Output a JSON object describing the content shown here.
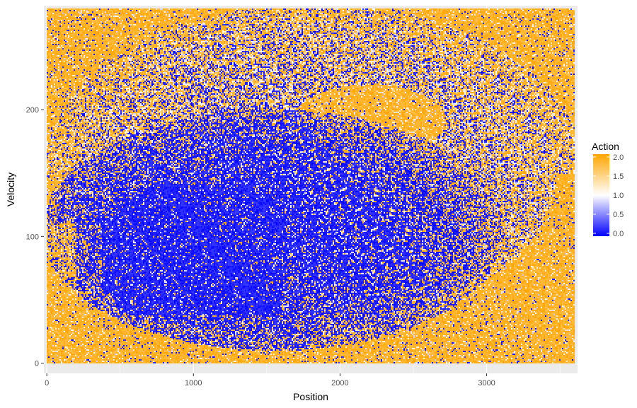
{
  "chart_data": {
    "type": "heatmap",
    "title": "",
    "xlabel": "Position",
    "ylabel": "Velocity",
    "xlim": [
      -20,
      3620
    ],
    "ylim": [
      -8,
      282
    ],
    "data_extent": {
      "x": [
        0,
        3600
      ],
      "y": [
        0,
        280
      ]
    },
    "x_ticks": [
      {
        "value": 0,
        "label": "0"
      },
      {
        "value": 1000,
        "label": "1000"
      },
      {
        "value": 2000,
        "label": "2000"
      },
      {
        "value": 3000,
        "label": "3000"
      }
    ],
    "y_ticks": [
      {
        "value": 0,
        "label": "0"
      },
      {
        "value": 100,
        "label": "100"
      },
      {
        "value": 200,
        "label": "200"
      }
    ],
    "grid": true,
    "panel_background": "#EBEBEB",
    "grid_color": "#FFFFFF",
    "legend": {
      "title": "Action",
      "placement": "right",
      "range": [
        0,
        2
      ],
      "ticks": [
        {
          "value": 2.0,
          "label": "2.0"
        },
        {
          "value": 1.5,
          "label": "1.5"
        },
        {
          "value": 1.0,
          "label": "1.0"
        },
        {
          "value": 0.5,
          "label": "0.5"
        },
        {
          "value": 0.0,
          "label": "0.0"
        }
      ],
      "colors": {
        "low": "#0000FF",
        "mid": "#FFFFFF",
        "high": "#FFA500"
      }
    },
    "regions": [
      {
        "action": 0,
        "shape": "outer-crescent",
        "center": [
          1550,
          105
        ],
        "x_range": [
          5,
          3370
        ],
        "y_range": [
          12,
          200
        ]
      },
      {
        "action": 0,
        "shape": "dense-core",
        "x_range": [
          380,
          1600
        ],
        "y_range": [
          40,
          140
        ]
      },
      {
        "action": 2,
        "shape": "upper-band",
        "center": [
          2200,
          195
        ],
        "x_range": [
          1700,
          2600
        ],
        "y_range": [
          170,
          215
        ]
      },
      {
        "action": "mixed",
        "shape": "outer-ring",
        "center": [
          1800,
          150
        ],
        "x_range": [
          200,
          3450
        ],
        "y_range": [
          30,
          270
        ]
      },
      {
        "action": 2,
        "shape": "background",
        "x_range": [
          0,
          3600
        ],
        "y_range": [
          0,
          280
        ]
      }
    ]
  }
}
